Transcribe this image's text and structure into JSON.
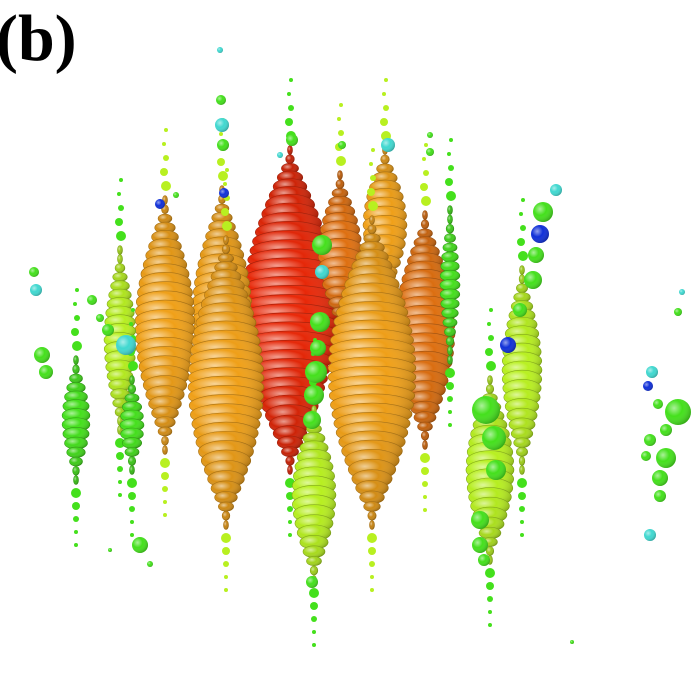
{
  "panel_label": "(b)",
  "palette": {
    "blue": "#1030d8",
    "cyan": "#40d8d0",
    "green": "#44e01c",
    "lime": "#b8f020",
    "yellow": "#f0e820",
    "orange": "#f0a018",
    "dark_orange": "#e07010",
    "red": "#e82808"
  }
}
